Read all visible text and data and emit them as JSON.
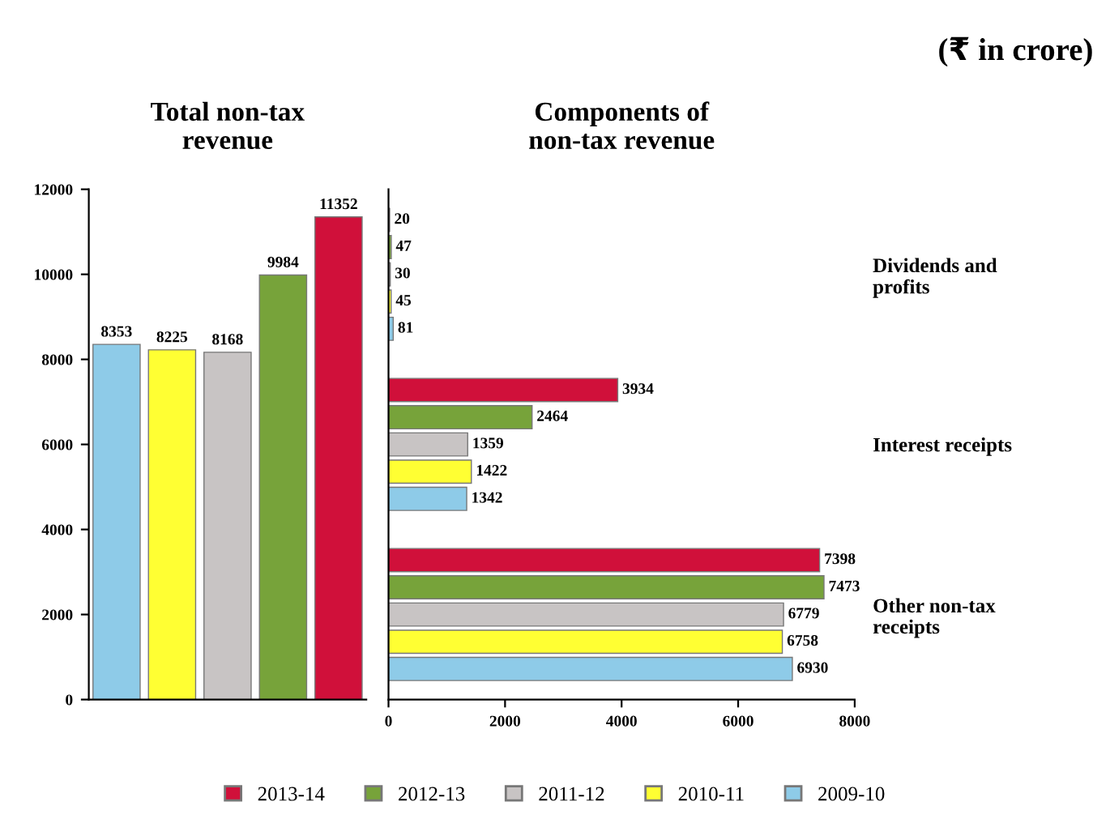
{
  "chart_data": [
    {
      "type": "bar",
      "title": "Total non-tax\nrevenue",
      "categories": [
        null,
        null,
        null,
        null,
        null
      ],
      "values": [
        8353,
        8225,
        8168,
        9984,
        11352
      ],
      "colors": [
        "#8ecbe8",
        "#ffff33",
        "#c8c4c4",
        "#77a33a",
        "#d0103a"
      ],
      "ylim": [
        0,
        12000
      ],
      "yticks": [
        0,
        2000,
        4000,
        6000,
        8000,
        10000,
        12000
      ],
      "tick_labels": "y",
      "data_labels": true
    },
    {
      "type": "bar",
      "orientation": "horizontal",
      "title": "Components of\nnon-tax revenue",
      "categories": [
        "Dividends and\nprofits",
        "Interest receipts",
        "Other non-tax\nreceipts"
      ],
      "series": [
        {
          "name": "2013-14",
          "color": "#d0103a",
          "values": [
            20,
            3934,
            7398
          ]
        },
        {
          "name": "2012-13",
          "color": "#77a33a",
          "values": [
            47,
            2464,
            7473
          ]
        },
        {
          "name": "2011-12",
          "color": "#c8c4c4",
          "values": [
            30,
            1359,
            6779
          ]
        },
        {
          "name": "2010-11",
          "color": "#ffff33",
          "values": [
            45,
            1422,
            6758
          ]
        },
        {
          "name": "2009-10",
          "color": "#8ecbe8",
          "values": [
            81,
            1342,
            6930
          ]
        }
      ],
      "xlim": [
        0,
        8000
      ],
      "xticks": [
        0,
        2000,
        4000,
        6000,
        8000
      ],
      "data_labels": true,
      "legend": "bottom",
      "annotations": [
        "(₹ in crore)"
      ]
    }
  ]
}
